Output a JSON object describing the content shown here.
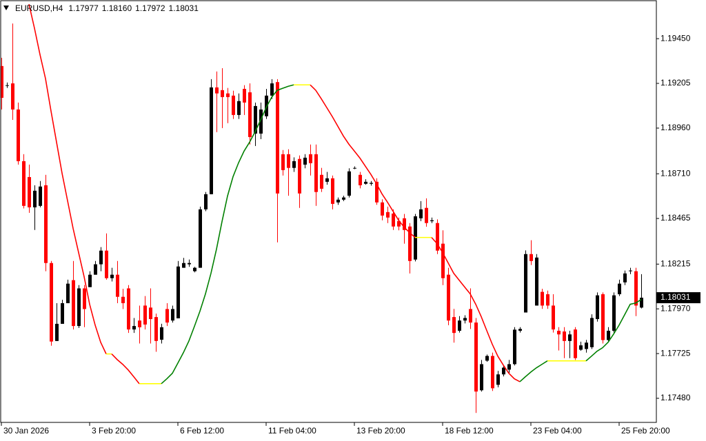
{
  "header": {
    "symbol": "EURUSD,H4",
    "ohlc": [
      "1.17977",
      "1.18160",
      "1.17972",
      "1.18031"
    ]
  },
  "chart_data": {
    "type": "candlestick",
    "up_color": "#000000",
    "down_color": "#ff0000",
    "categories": [
      "30 Jan 2026",
      null,
      null,
      null,
      null,
      null,
      null,
      null,
      null,
      null,
      null,
      null,
      null,
      null,
      null,
      null,
      "3 Feb 20:00",
      null,
      null,
      null,
      null,
      null,
      null,
      null,
      null,
      null,
      null,
      null,
      null,
      null,
      null,
      null,
      "6 Feb 12:00",
      null,
      null,
      null,
      null,
      null,
      null,
      null,
      null,
      null,
      null,
      null,
      null,
      null,
      null,
      null,
      "11 Feb 04:00",
      null,
      null,
      null,
      null,
      null,
      null,
      null,
      null,
      null,
      null,
      null,
      null,
      null,
      null,
      null,
      "13 Feb 20:00",
      null,
      null,
      null,
      null,
      null,
      null,
      null,
      null,
      null,
      null,
      null,
      null,
      null,
      null,
      null,
      "18 Feb 12:00",
      null,
      null,
      null,
      null,
      null,
      null,
      null,
      null,
      null,
      null,
      null,
      null,
      null,
      null,
      null,
      "23 Feb 04:00",
      null,
      null,
      null,
      null,
      null,
      null,
      null,
      null,
      null,
      null,
      null,
      null,
      null,
      null,
      null,
      "25 Feb 20:00",
      null,
      null,
      null,
      null
    ],
    "open": [
      1.193,
      1.19195,
      1.19205,
      1.19062,
      1.18779,
      1.18692,
      1.18526,
      1.18534,
      1.18647,
      1.18221,
      1.17794,
      1.17888,
      1.18001,
      1.18127,
      1.17876,
      1.18082,
      1.18089,
      1.18157,
      1.18214,
      1.18289,
      1.18138,
      1.18157,
      1.18036,
      1.18082,
      1.17857,
      1.17906,
      1.17988,
      1.17977,
      1.17925,
      1.17801,
      1.17969,
      1.17906,
      1.17918,
      1.18195,
      1.18214,
      1.18176,
      1.18195,
      1.18515,
      1.18598,
      1.19183,
      1.19168,
      1.1915,
      1.19138,
      1.19032,
      1.19175,
      1.19156,
      1.1893,
      1.1893,
      1.19025,
      1.19138,
      1.19212,
      1.18817,
      1.18817,
      1.18742,
      1.18791,
      1.1876,
      1.18817,
      1.18817,
      1.18704,
      1.18666,
      1.18685,
      1.18553,
      1.18568,
      1.1859,
      1.1874,
      1.18704,
      1.18655,
      1.18655,
      1.18666,
      1.18553,
      1.185,
      1.18492,
      1.18451,
      1.18466,
      1.18421,
      1.1824,
      1.18466,
      1.18523,
      1.1845,
      1.1844,
      1.18327,
      1.18157,
      1.17925,
      1.1785,
      1.17906,
      1.17969,
      1.17895,
      1.17524,
      1.17686,
      1.17712,
      1.17554,
      1.17611,
      1.17637,
      1.17667,
      1.1785,
      1.1795,
      1.1827,
      1.17988,
      1.18063,
      1.1805,
      1.17988,
      1.1785,
      1.17846,
      1.17794,
      1.17857,
      1.17746,
      1.1775,
      1.1776,
      1.17914,
      1.1805,
      1.17799,
      1.1785,
      1.1805,
      1.18115,
      1.18176,
      1.18176,
      1.17977
    ],
    "high": [
      1.19345,
      1.1921,
      1.19533,
      1.191,
      1.18817,
      1.1876,
      1.18647,
      1.1867,
      1.18704,
      1.18232,
      1.18001,
      1.1802,
      1.1813,
      1.18232,
      1.181,
      1.181,
      1.18176,
      1.18232,
      1.18308,
      1.18383,
      1.18195,
      1.18232,
      1.1808,
      1.181,
      1.1792,
      1.17988,
      1.1804,
      1.18082,
      1.17944,
      1.17888,
      1.18001,
      1.17988,
      1.18232,
      1.18249,
      1.1824,
      1.182,
      1.1853,
      1.1861,
      1.19228,
      1.1927,
      1.19288,
      1.1918,
      1.19165,
      1.1915,
      1.19195,
      1.19205,
      1.191,
      1.191,
      1.19175,
      1.19228,
      1.19228,
      1.1884,
      1.18844,
      1.188,
      1.1881,
      1.18817,
      1.1887,
      1.1887,
      1.18742,
      1.1872,
      1.187,
      1.1858,
      1.1859,
      1.1874,
      1.1875,
      1.1872,
      1.1868,
      1.1867,
      1.18685,
      1.1857,
      1.1853,
      1.18515,
      1.1847,
      1.1849,
      1.1844,
      1.1849,
      1.1856,
      1.18575,
      1.1847,
      1.1846,
      1.184,
      1.18195,
      1.1797,
      1.1793,
      1.17935,
      1.18082,
      1.1792,
      1.1769,
      1.1772,
      1.1773,
      1.1763,
      1.1766,
      1.1769,
      1.1787,
      1.1787,
      1.1829,
      1.18346,
      1.1827,
      1.1808,
      1.1807,
      1.1805,
      1.1787,
      1.1787,
      1.1785,
      1.1787,
      1.1779,
      1.178,
      1.1794,
      1.1806,
      1.1806,
      1.1787,
      1.1806,
      1.1813,
      1.1818,
      1.18195,
      1.18195,
      1.1816
    ],
    "low": [
      1.19062,
      1.1918,
      1.19005,
      1.1876,
      1.1852,
      1.18496,
      1.18402,
      1.18526,
      1.18176,
      1.17768,
      1.17794,
      1.17888,
      1.18001,
      1.17857,
      1.17865,
      1.1787,
      1.18089,
      1.18157,
      1.18176,
      1.1813,
      1.1812,
      1.18001,
      1.17969,
      1.17838,
      1.17838,
      1.1778,
      1.17857,
      1.1778,
      1.17735,
      1.1778,
      1.17876,
      1.17895,
      1.17918,
      1.18195,
      1.182,
      1.1817,
      1.18195,
      1.18505,
      1.18598,
      1.18938,
      1.1896,
      1.18987,
      1.1901,
      1.1901,
      1.19032,
      1.1887,
      1.18862,
      1.189,
      1.1901,
      1.1912,
      1.18334,
      1.187,
      1.1859,
      1.1872,
      1.18523,
      1.1874,
      1.187,
      1.18534,
      1.1861,
      1.1865,
      1.18515,
      1.1854,
      1.1856,
      1.1858,
      1.18735,
      1.1863,
      1.1865,
      1.18645,
      1.1854,
      1.18455,
      1.1844,
      1.18402,
      1.184,
      1.18327,
      1.18164,
      1.1823,
      1.1845,
      1.1842,
      1.1844,
      1.1827,
      1.181,
      1.1788,
      1.17785,
      1.1784,
      1.1789,
      1.1786,
      1.174,
      1.17517,
      1.1768,
      1.1752,
      1.1754,
      1.176,
      1.1762,
      1.1766,
      1.1784,
      1.1795,
      1.1821,
      1.17988,
      1.1797,
      1.1797,
      1.1784,
      1.17742,
      1.177,
      1.177,
      1.1769,
      1.1774,
      1.1773,
      1.1775,
      1.179,
      1.1778,
      1.1779,
      1.1784,
      1.1804,
      1.181,
      1.1816,
      1.1793,
      1.17972
    ],
    "close": [
      1.19126,
      1.19195,
      1.19062,
      1.18779,
      1.18534,
      1.18526,
      1.18617,
      1.1864,
      1.18221,
      1.17791,
      1.17888,
      1.18001,
      1.18108,
      1.17876,
      1.18082,
      1.17969,
      1.18157,
      1.18214,
      1.18289,
      1.18138,
      1.18157,
      1.18036,
      1.18001,
      1.17857,
      1.17876,
      1.17869,
      1.17884,
      1.17914,
      1.17794,
      1.17869,
      1.17895,
      1.17969,
      1.18202,
      1.18221,
      1.18221,
      1.18195,
      1.18515,
      1.18598,
      1.19183,
      1.1915,
      1.1913,
      1.1913,
      1.19032,
      1.19108,
      1.191,
      1.18911,
      1.19081,
      1.19062,
      1.19138,
      1.19205,
      1.18602,
      1.1873,
      1.18742,
      1.18779,
      1.18602,
      1.18798,
      1.18768,
      1.1861,
      1.18628,
      1.18685,
      1.18545,
      1.18568,
      1.1858,
      1.18723,
      1.18742,
      1.18647,
      1.18666,
      1.1866,
      1.18553,
      1.18481,
      1.1847,
      1.18421,
      1.18421,
      1.18402,
      1.18232,
      1.18477,
      1.18515,
      1.1844,
      1.18455,
      1.18289,
      1.18138,
      1.17906,
      1.17838,
      1.17906,
      1.1792,
      1.17895,
      1.17517,
      1.17667,
      1.17712,
      1.17535,
      1.17611,
      1.17648,
      1.17667,
      1.17856,
      1.1786,
      1.1827,
      1.18232,
      1.18251,
      1.17988,
      1.17988,
      1.17857,
      1.1783,
      1.17794,
      1.1783,
      1.177,
      1.1777,
      1.17785,
      1.1792,
      1.18044,
      1.17799,
      1.1785,
      1.18044,
      1.18108,
      1.18164,
      1.1818,
      1.17988,
      1.18031
    ],
    "ma": {
      "up_color": "#008000",
      "down_color": "#ff0000",
      "flat_color": "#ffff00",
      "values": [
        null,
        null,
        null,
        null,
        null,
        1.19639,
        1.19507,
        1.19363,
        1.19231,
        1.19053,
        1.18883,
        1.18713,
        1.18562,
        1.18411,
        1.18278,
        1.18146,
        1.17995,
        1.17881,
        1.17787,
        1.17723,
        1.17723,
        1.17692,
        1.17666,
        1.17635,
        1.17598,
        1.1756,
        1.1756,
        1.1756,
        1.1756,
        1.1756,
        1.17587,
        1.17617,
        1.17673,
        1.1773,
        1.17794,
        1.17874,
        1.17957,
        1.18052,
        1.18165,
        1.18297,
        1.18448,
        1.18588,
        1.18694,
        1.1877,
        1.18834,
        1.18883,
        1.1894,
        1.19004,
        1.19072,
        1.19129,
        1.19167,
        1.19178,
        1.19189,
        1.19197,
        1.19197,
        1.19197,
        1.19197,
        1.19167,
        1.19121,
        1.19072,
        1.19023,
        1.1897,
        1.18917,
        1.18872,
        1.18834,
        1.18796,
        1.18751,
        1.18706,
        1.18656,
        1.186,
        1.18554,
        1.18505,
        1.18456,
        1.18418,
        1.18388,
        1.18361,
        1.18361,
        1.18361,
        1.18361,
        1.18327,
        1.18278,
        1.18222,
        1.18165,
        1.18127,
        1.18089,
        1.18052,
        1.17995,
        1.17927,
        1.17851,
        1.17776,
        1.17711,
        1.17662,
        1.17617,
        1.17587,
        1.17571,
        1.17598,
        1.17624,
        1.17647,
        1.17666,
        1.17685,
        1.17685,
        1.17685,
        1.17685,
        1.17685,
        1.17685,
        1.17685,
        1.17685,
        1.17711,
        1.17738,
        1.17757,
        1.17787,
        1.17832,
        1.17881,
        1.17938,
        1.17995,
        1.18002,
        1.18021
      ]
    },
    "ylim": [
      1.17348,
      1.19658
    ],
    "yticks": [
      {
        "value": 1.1945,
        "label": "1.19450"
      },
      1.19205,
      {
        "value": 1.1896,
        "label": "1.18960"
      },
      {
        "value": 1.1871,
        "label": "1.18710"
      },
      1.18465,
      1.18215,
      {
        "value": 1.1797,
        "label": "1.17970"
      },
      1.17725,
      {
        "value": 1.1748,
        "label": "1.17480"
      }
    ]
  }
}
